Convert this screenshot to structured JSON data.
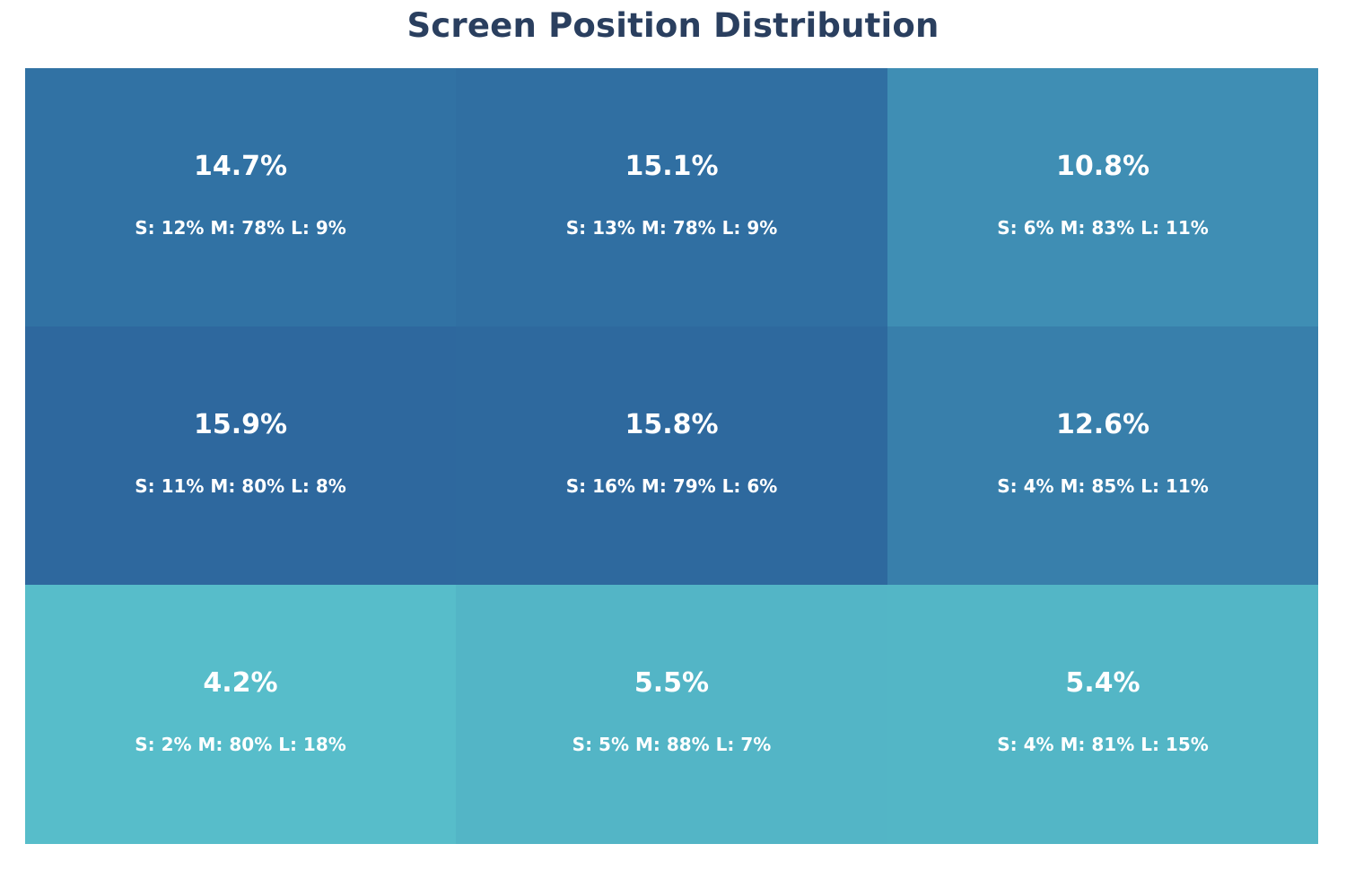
{
  "chart_data": {
    "type": "heatmap",
    "title": "Screen Position Distribution",
    "rows": 3,
    "columns": 3,
    "cells": [
      {
        "value": 14.7,
        "label": "14.7%",
        "breakdown": "S: 12% M: 78% L: 9%",
        "color": "#3172a4"
      },
      {
        "value": 15.1,
        "label": "15.1%",
        "breakdown": "S: 13% M: 78% L: 9%",
        "color": "#306fa2"
      },
      {
        "value": 10.8,
        "label": "10.8%",
        "breakdown": "S: 6% M: 83% L: 11%",
        "color": "#3f8eb4"
      },
      {
        "value": 15.9,
        "label": "15.9%",
        "breakdown": "S: 11% M: 80% L: 8%",
        "color": "#2e689e"
      },
      {
        "value": 15.8,
        "label": "15.8%",
        "breakdown": "S: 16% M: 79% L: 6%",
        "color": "#2e699e"
      },
      {
        "value": 12.6,
        "label": "12.6%",
        "breakdown": "S: 4% M: 85% L: 11%",
        "color": "#387fab"
      },
      {
        "value": 4.2,
        "label": "4.2%",
        "breakdown": "S: 2% M: 80% L: 18%",
        "color": "#57bdca"
      },
      {
        "value": 5.5,
        "label": "5.5%",
        "breakdown": "S: 5% M: 88% L: 7%",
        "color": "#53b5c6"
      },
      {
        "value": 5.4,
        "label": "5.4%",
        "breakdown": "S: 4% M: 81% L: 15%",
        "color": "#53b6c6"
      }
    ]
  }
}
